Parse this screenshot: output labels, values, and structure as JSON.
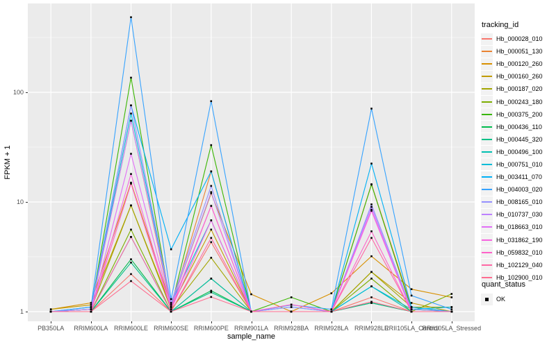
{
  "figure": {
    "y_axis_title": "FPKM + 1",
    "x_axis_title": "sample_name",
    "legend_tracking_title": "tracking_id",
    "legend_quant_title": "quant_status",
    "legend_quant_ok_label": "OK"
  },
  "colors": {
    "panel_background": "#EBEBEB",
    "gridline": "#FFFFFF",
    "tick_text": "#4D4D4D",
    "point": "#000000",
    "legend_key_background": "#F2F2F2"
  },
  "chart_data": {
    "type": "line",
    "title": "",
    "xlabel": "sample_name",
    "ylabel": "FPKM + 1",
    "y_scale": "log10",
    "y_ticks": [
      "1",
      "10",
      "100"
    ],
    "ylim": [
      1,
      650
    ],
    "grid": true,
    "legend_position": "right",
    "point_marker": "filled-black-square (quant_status = OK)",
    "categories": [
      "PB350LA",
      "RRIM600LA",
      "RRIM600LE",
      "RRIM600SE",
      "RRIM600PE",
      "RRIM901LA",
      "RRIM928BA",
      "RRIM928LA",
      "RRIM928LE",
      "RRII105LA_Control",
      "RRII105LA_Stressed"
    ],
    "series": [
      {
        "name": "Hb_000028_010",
        "color": "#F8766D",
        "values": [
          1.0,
          1.0,
          2.2,
          1.0,
          4.3,
          1.0,
          1.0,
          1.0,
          1.35,
          1.0,
          1.0
        ]
      },
      {
        "name": "Hb_000051_130",
        "color": "#EA8331",
        "values": [
          1.0,
          1.05,
          55,
          1.1,
          19,
          1.0,
          1.0,
          1.0,
          14.5,
          1.1,
          1.0
        ]
      },
      {
        "name": "Hb_000120_260",
        "color": "#D89000",
        "values": [
          1.05,
          1.2,
          15,
          1.15,
          12,
          1.44,
          1.0,
          1.47,
          3.2,
          1.6,
          1.35
        ]
      },
      {
        "name": "Hb_000160_260",
        "color": "#C09B00",
        "values": [
          1.05,
          1.15,
          9.3,
          1.1,
          5.6,
          1.0,
          1.0,
          1.0,
          2.3,
          1.2,
          1.0
        ]
      },
      {
        "name": "Hb_000187_020",
        "color": "#A3A500",
        "values": [
          1.0,
          1.05,
          9.3,
          1.05,
          3.1,
          1.0,
          1.0,
          1.0,
          2.3,
          1.1,
          1.1
        ]
      },
      {
        "name": "Hb_000243_180",
        "color": "#7CAE00",
        "values": [
          1.0,
          1.0,
          5.6,
          1.0,
          2.0,
          1.0,
          1.0,
          1.0,
          2.0,
          1.0,
          1.45
        ]
      },
      {
        "name": "Hb_000375_200",
        "color": "#39B600",
        "values": [
          1.0,
          1.05,
          136,
          1.1,
          33,
          1.0,
          1.35,
          1.0,
          14.4,
          1.05,
          1.0
        ]
      },
      {
        "name": "Hb_000436_110",
        "color": "#00BB4E",
        "values": [
          1.0,
          1.0,
          3.0,
          1.0,
          1.55,
          1.0,
          1.0,
          1.0,
          1.2,
          1.0,
          1.0
        ]
      },
      {
        "name": "Hb_000445_320",
        "color": "#00C087",
        "values": [
          1.0,
          1.0,
          2.8,
          1.0,
          1.5,
          1.0,
          1.0,
          1.0,
          1.2,
          1.0,
          1.0
        ]
      },
      {
        "name": "Hb_000496_100",
        "color": "#00C0B1",
        "values": [
          1.0,
          1.0,
          4.8,
          1.0,
          2.0,
          1.0,
          1.0,
          1.0,
          1.7,
          1.0,
          1.0
        ]
      },
      {
        "name": "Hb_000751_010",
        "color": "#00BCD8",
        "values": [
          1.0,
          1.05,
          64,
          1.2,
          6.8,
          1.0,
          1.0,
          1.0,
          1.7,
          1.05,
          1.1
        ]
      },
      {
        "name": "Hb_003411_070",
        "color": "#00B0F6",
        "values": [
          1.0,
          1.1,
          76,
          3.7,
          19,
          1.0,
          1.1,
          1.0,
          22.4,
          1.1,
          1.0
        ]
      },
      {
        "name": "Hb_004003_020",
        "color": "#35A2FF",
        "values": [
          1.0,
          1.1,
          484,
          1.3,
          83,
          1.0,
          1.15,
          1.05,
          71,
          1.4,
          1.05
        ]
      },
      {
        "name": "Hb_008165_010",
        "color": "#9590FF",
        "values": [
          1.0,
          1.05,
          76,
          1.2,
          14,
          1.0,
          1.1,
          1.0,
          9.5,
          1.05,
          1.0
        ]
      },
      {
        "name": "Hb_010737_030",
        "color": "#BC81FF",
        "values": [
          1.0,
          1.05,
          55,
          1.15,
          12.3,
          1.0,
          1.0,
          1.0,
          9.0,
          1.0,
          1.0
        ]
      },
      {
        "name": "Hb_018663_010",
        "color": "#E26EF7",
        "values": [
          1.0,
          1.0,
          27.5,
          1.1,
          9.2,
          1.0,
          1.0,
          1.0,
          8.5,
          1.0,
          1.0
        ]
      },
      {
        "name": "Hb_031862_190",
        "color": "#F763E0",
        "values": [
          1.0,
          1.0,
          18,
          1.05,
          6.8,
          1.0,
          1.0,
          1.0,
          8.3,
          1.0,
          1.0
        ]
      },
      {
        "name": "Hb_059832_010",
        "color": "#FF61C9",
        "values": [
          1.0,
          1.0,
          14.7,
          1.05,
          9.2,
          1.0,
          1.16,
          1.0,
          5.4,
          1.0,
          1.0
        ]
      },
      {
        "name": "Hb_102129_040",
        "color": "#FF67A4",
        "values": [
          1.0,
          1.0,
          4.8,
          1.0,
          4.7,
          1.0,
          1.0,
          1.0,
          4.7,
          1.0,
          1.0
        ]
      },
      {
        "name": "Hb_102900_010",
        "color": "#FF6C90",
        "values": [
          1.0,
          1.0,
          1.9,
          1.0,
          1.36,
          1.0,
          1.0,
          1.0,
          1.23,
          1.0,
          1.0
        ]
      }
    ]
  }
}
